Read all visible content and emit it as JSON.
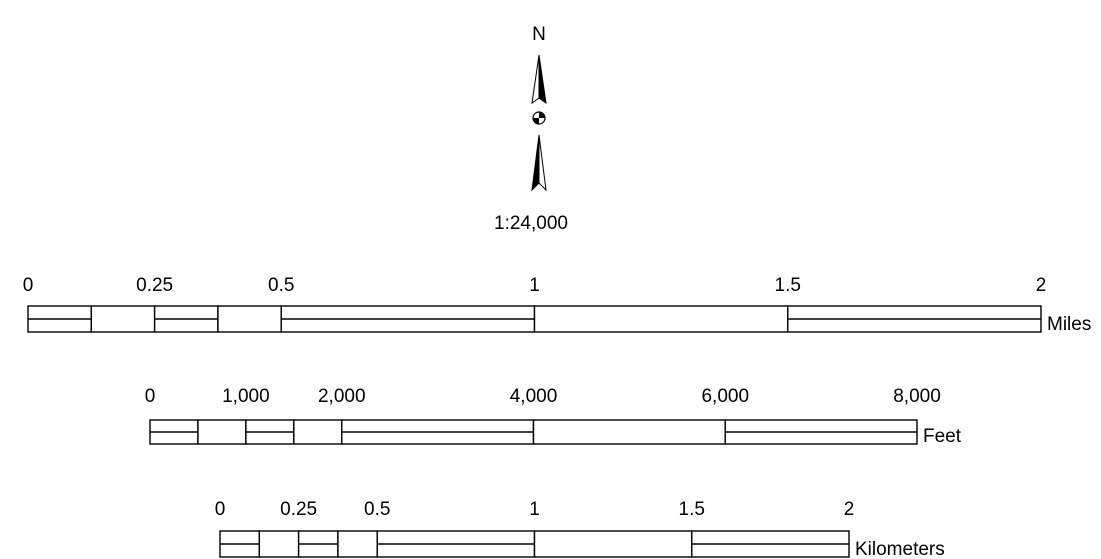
{
  "north_arrow": {
    "label": "N"
  },
  "scale_text": "1:24,000",
  "scale_bars": [
    {
      "unit": "Miles",
      "ticks": [
        "0",
        "0.25",
        "0.5",
        "1",
        "1.5",
        "2"
      ],
      "tick_values": [
        0,
        0.25,
        0.5,
        1,
        1.5,
        2
      ],
      "subdivisions": [
        0,
        0.125,
        0.25,
        0.375,
        0.5,
        1,
        1.5,
        2
      ],
      "max": 2
    },
    {
      "unit": "Feet",
      "ticks": [
        "0",
        "1,000",
        "2,000",
        "4,000",
        "6,000",
        "8,000"
      ],
      "tick_values": [
        0,
        1000,
        2000,
        4000,
        6000,
        8000
      ],
      "subdivisions": [
        0,
        500,
        1000,
        1500,
        2000,
        4000,
        6000,
        8000
      ],
      "max": 8000
    },
    {
      "unit": "Kilometers",
      "ticks": [
        "0",
        "0.25",
        "0.5",
        "1",
        "1.5",
        "2"
      ],
      "tick_values": [
        0,
        0.25,
        0.5,
        1,
        1.5,
        2
      ],
      "subdivisions": [
        0,
        0.125,
        0.25,
        0.375,
        0.5,
        1,
        1.5,
        2
      ],
      "max": 2
    }
  ]
}
